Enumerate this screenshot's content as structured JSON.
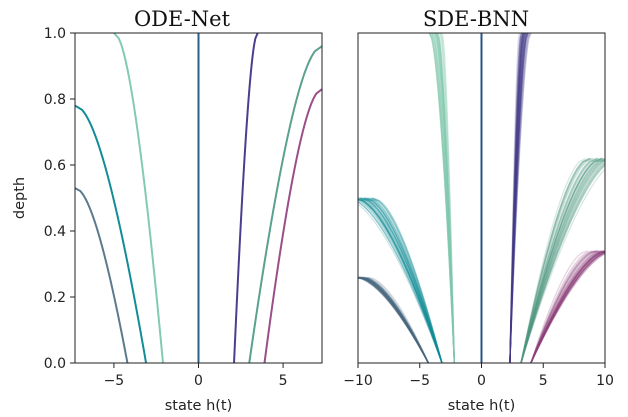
{
  "chart_data": [
    {
      "type": "line",
      "title": "ODE-Net",
      "xlabel": "state h(t)",
      "ylabel": "depth",
      "xlim": [
        -7.3,
        7.3
      ],
      "ylim": [
        0,
        1
      ],
      "xticks": [
        -5,
        0,
        5
      ],
      "xtick_labels": [
        "−5",
        "0",
        "5"
      ],
      "yticks": [
        0.0,
        0.2,
        0.4,
        0.6,
        0.8,
        1.0
      ],
      "ytick_labels": [
        "0.0",
        "0.2",
        "0.4",
        "0.6",
        "0.8",
        "1.0"
      ],
      "grid": false,
      "series": [
        {
          "color": "#5b7a8c",
          "start": -4.2,
          "dir": -1,
          "end_x": -7.3,
          "end_depth": 0.53
        },
        {
          "color": "#138c98",
          "start": -3.1,
          "dir": -1,
          "end_x": -7.3,
          "end_depth": 0.78
        },
        {
          "color": "#82cbb1",
          "start": -2.1,
          "dir": -1,
          "end_x": -5.0,
          "end_depth": 1.0
        },
        {
          "color": "#275f8b",
          "start": 0.0,
          "dir": 0,
          "end_x": 0.0,
          "end_depth": 1.0
        },
        {
          "color": "#4a3f8e",
          "start": 2.1,
          "dir": 1,
          "end_x": 3.5,
          "end_depth": 1.0
        },
        {
          "color": "#5aa18f",
          "start": 3.0,
          "dir": 1,
          "end_x": 7.3,
          "end_depth": 0.96
        },
        {
          "color": "#9a4f8a",
          "start": 3.9,
          "dir": 1,
          "end_x": 7.3,
          "end_depth": 0.83
        }
      ]
    },
    {
      "type": "line",
      "title": "SDE-BNN",
      "xlabel": "state h(t)",
      "ylabel": "",
      "xlim": [
        -10,
        10
      ],
      "ylim": [
        0,
        1
      ],
      "xticks": [
        -10,
        -5,
        0,
        5,
        10
      ],
      "xtick_labels": [
        "−10",
        "−5",
        "0",
        "5",
        "10"
      ],
      "grid": false,
      "samples_per_trajectory": 40,
      "series": [
        {
          "color": "#4a6b7e",
          "start": -4.3,
          "dir": -1,
          "end_x": -10.0,
          "end_depth": 0.26,
          "spread": 0.05
        },
        {
          "color": "#148e98",
          "start": -3.2,
          "dir": -1,
          "end_x": -10.0,
          "end_depth": 0.5,
          "spread": 0.09
        },
        {
          "color": "#7fc9ae",
          "start": -2.2,
          "dir": -1,
          "end_x": -3.8,
          "end_depth": 1.0,
          "spread": 0.18
        },
        {
          "color": "#24588a",
          "start": 0.0,
          "dir": 0,
          "end_x": 0.0,
          "end_depth": 1.0,
          "spread": 0.1
        },
        {
          "color": "#44398a",
          "start": 2.3,
          "dir": 1,
          "end_x": 3.5,
          "end_depth": 1.0,
          "spread": 0.2
        },
        {
          "color": "#4f957f",
          "start": 3.2,
          "dir": 1,
          "end_x": 10.0,
          "end_depth": 0.62,
          "spread": 0.12
        },
        {
          "color": "#8f3f7c",
          "start": 4.0,
          "dir": 1,
          "end_x": 10.0,
          "end_depth": 0.34,
          "spread": 0.1
        }
      ]
    }
  ]
}
